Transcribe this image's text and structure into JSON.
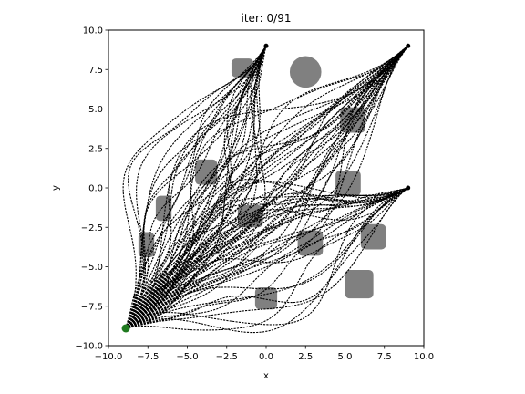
{
  "chart_data": {
    "type": "line",
    "title": "iter: 0/91",
    "xlabel": "x",
    "ylabel": "y",
    "xlim": [
      -10,
      10
    ],
    "ylim": [
      -10,
      10
    ],
    "xticks": [
      "−10.0",
      "−7.5",
      "−5.0",
      "−2.5",
      "0.0",
      "2.5",
      "5.0",
      "7.5",
      "10.0"
    ],
    "yticks": [
      "−10.0",
      "−7.5",
      "−5.0",
      "−2.5",
      "0.0",
      "2.5",
      "5.0",
      "7.5",
      "10.0"
    ],
    "xtick_values": [
      -10,
      -7.5,
      -5,
      -2.5,
      0,
      2.5,
      5,
      7.5,
      10
    ],
    "ytick_values": [
      -10,
      -7.5,
      -5,
      -2.5,
      0,
      2.5,
      5,
      7.5,
      10
    ],
    "grid": false,
    "start": {
      "x": -8.9,
      "y": -8.9,
      "color": "#1f7a1f"
    },
    "targets": [
      {
        "x": 0.0,
        "y": 9.0
      },
      {
        "x": 9.0,
        "y": 9.0
      },
      {
        "x": 9.0,
        "y": 0.0
      }
    ],
    "obstacles": [
      {
        "shape": "circle",
        "x": 2.5,
        "y": 7.35,
        "r": 1.0
      },
      {
        "shape": "box",
        "x": -1.5,
        "y": 7.6,
        "w": 1.4,
        "h": 1.2
      },
      {
        "shape": "box",
        "x": 5.5,
        "y": 4.3,
        "w": 1.6,
        "h": 1.6
      },
      {
        "shape": "box",
        "x": -3.8,
        "y": 1.0,
        "w": 1.4,
        "h": 1.6
      },
      {
        "shape": "box",
        "x": 5.2,
        "y": 0.3,
        "w": 1.6,
        "h": 1.6
      },
      {
        "shape": "box",
        "x": -6.5,
        "y": -1.3,
        "w": 1.0,
        "h": 1.6
      },
      {
        "shape": "box",
        "x": -1.0,
        "y": -1.8,
        "w": 1.6,
        "h": 1.4
      },
      {
        "shape": "box",
        "x": 6.8,
        "y": -3.1,
        "w": 1.6,
        "h": 1.6
      },
      {
        "shape": "box",
        "x": -7.6,
        "y": -3.6,
        "w": 1.0,
        "h": 1.6
      },
      {
        "shape": "box",
        "x": 2.8,
        "y": -3.5,
        "w": 1.6,
        "h": 1.6
      },
      {
        "shape": "box",
        "x": 5.9,
        "y": -6.1,
        "w": 1.8,
        "h": 1.8
      },
      {
        "shape": "box",
        "x": 0.0,
        "y": -7.0,
        "w": 1.4,
        "h": 1.4
      }
    ],
    "trajectory_groups": [
      {
        "target_index": 0,
        "count": 28
      },
      {
        "target_index": 1,
        "count": 36
      },
      {
        "target_index": 2,
        "count": 27
      }
    ],
    "colors": {
      "trajectory": "#000000",
      "obstacle": "#808080"
    }
  }
}
